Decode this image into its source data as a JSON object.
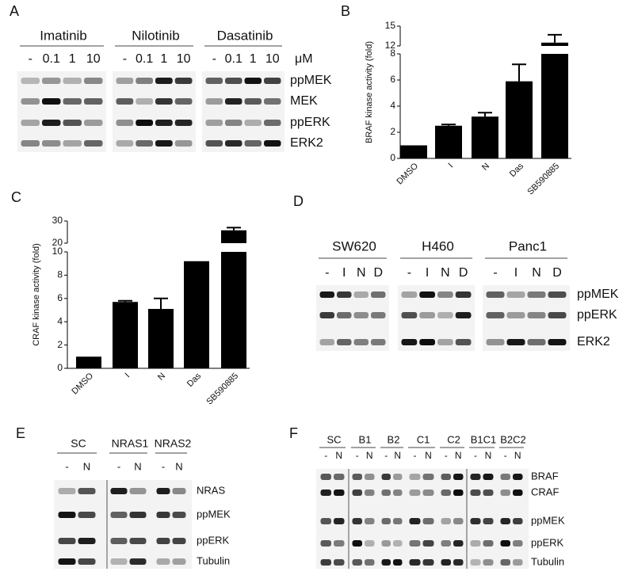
{
  "chart_data": [
    {
      "type": "bar",
      "label": "B",
      "ylabel": "BRAF kinase activity (fold)",
      "categories": [
        "DMSO",
        "I",
        "N",
        "Das",
        "SB590885"
      ],
      "values": [
        1,
        2.5,
        3.2,
        5.9,
        12.5
      ],
      "errors": [
        null,
        0.1,
        0.3,
        1.3,
        1.2
      ],
      "color": "#000000",
      "ylim": [
        0,
        15
      ],
      "axis_break": [
        8,
        12
      ],
      "yticks": [
        0,
        2,
        4,
        6,
        8,
        12,
        15
      ]
    },
    {
      "type": "bar",
      "label": "C",
      "ylabel": "CRAF kinase activity (fold)",
      "categories": [
        "DMSO",
        "I",
        "N",
        "Das",
        "SB590885"
      ],
      "values": [
        1,
        5.7,
        5.1,
        9.2,
        25.8
      ],
      "errors": [
        null,
        0.1,
        0.9,
        null,
        1.2
      ],
      "color": "#000000",
      "ylim": [
        0,
        30
      ],
      "axis_break": [
        10,
        20
      ],
      "yticks": [
        0,
        2,
        4,
        6,
        8,
        10,
        20,
        30
      ]
    }
  ],
  "blots": [
    {
      "label": "A",
      "groups": [
        {
          "name": "Imatinib",
          "lanes": [
            "-",
            "0.1",
            "1",
            "10"
          ]
        },
        {
          "name": "Nilotinib",
          "lanes": [
            "-",
            "0.1",
            "1",
            "10"
          ]
        },
        {
          "name": "Dasatinib",
          "lanes": [
            "-",
            "0.1",
            "1",
            "10"
          ]
        }
      ],
      "unit": "μM",
      "rows": [
        "ppMEK",
        "MEK",
        "ppERK",
        "ERK2"
      ]
    },
    {
      "label": "D",
      "groups": [
        {
          "name": "SW620",
          "lanes": [
            "-",
            "I",
            "N",
            "D"
          ]
        },
        {
          "name": "H460",
          "lanes": [
            "-",
            "I",
            "N",
            "D"
          ]
        },
        {
          "name": "Panc1",
          "lanes": [
            "-",
            "I",
            "N",
            "D"
          ]
        }
      ],
      "rows": [
        "ppMEK",
        "ppERK",
        "ERK2"
      ]
    },
    {
      "label": "E",
      "groups": [
        {
          "name": "SC",
          "lanes": [
            "-",
            "N"
          ]
        },
        {
          "name": "NRAS1",
          "lanes": [
            "-",
            "N"
          ]
        },
        {
          "name": "NRAS2",
          "lanes": [
            "-",
            "N"
          ]
        }
      ],
      "rows": [
        "NRAS",
        "ppMEK",
        "ppERK",
        "Tubulin"
      ]
    },
    {
      "label": "F",
      "groups": [
        {
          "name": "SC",
          "lanes": [
            "-",
            "N"
          ]
        },
        {
          "name": "B1",
          "lanes": [
            "-",
            "N"
          ]
        },
        {
          "name": "B2",
          "lanes": [
            "-",
            "N"
          ]
        },
        {
          "name": "C1",
          "lanes": [
            "-",
            "N"
          ]
        },
        {
          "name": "C2",
          "lanes": [
            "-",
            "N"
          ]
        },
        {
          "name": "B1C1",
          "lanes": [
            "-",
            "N"
          ]
        },
        {
          "name": "B2C2",
          "lanes": [
            "-",
            "N"
          ]
        }
      ],
      "rows": [
        "BRAF",
        "CRAF",
        "ppMEK",
        "ppERK",
        "Tubulin"
      ]
    }
  ]
}
